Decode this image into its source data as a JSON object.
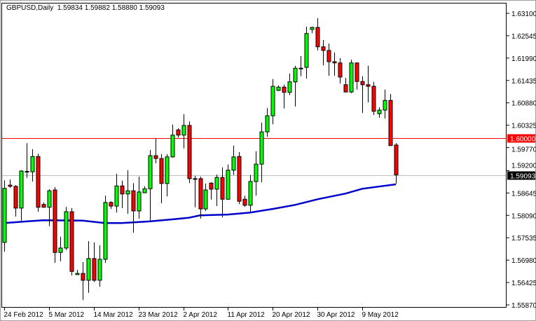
{
  "header": {
    "symbol": "GBPUSD,Daily",
    "open": "1.59834",
    "high": "1.59882",
    "low": "1.58880",
    "close": "1.59093"
  },
  "colors": {
    "bull": "#00ff00",
    "bear": "#ff0000",
    "outline": "#000000",
    "ma": "#0000cc",
    "level_line": "#ff0000",
    "bid_line": "#c0c0c0",
    "bid_label_bg": "#000000"
  },
  "chart_data": {
    "type": "candlestick",
    "title": "GBPUSD,Daily",
    "ylim": [
      1.5587,
      1.631
    ],
    "y_ticks": [
      "1.63100",
      "1.62545",
      "1.61990",
      "1.61435",
      "1.60880",
      "1.60325",
      "1.59770",
      "1.59200",
      "1.58645",
      "1.58090",
      "1.57535",
      "1.56980",
      "1.56425",
      "1.55870"
    ],
    "x_ticks": [
      {
        "index": 0,
        "label": "24 Feb 2012"
      },
      {
        "index": 8,
        "label": "5 Mar 2012"
      },
      {
        "index": 16,
        "label": "14 Mar 2012"
      },
      {
        "index": 24,
        "label": "23 Mar 2012"
      },
      {
        "index": 32,
        "label": "2 Apr 2012"
      },
      {
        "index": 40,
        "label": "11 Apr 2012"
      },
      {
        "index": 48,
        "label": "20 Apr 2012"
      },
      {
        "index": 56,
        "label": "30 Apr 2012"
      },
      {
        "index": 64,
        "label": "9 May 2012"
      }
    ],
    "level_line": {
      "value": 1.6,
      "label": "1.60000"
    },
    "bid_line": {
      "value": 1.59093,
      "label": "1.59093"
    },
    "ohlc": [
      [
        1.5742,
        1.5896,
        1.5719,
        1.5876
      ],
      [
        1.5884,
        1.5898,
        1.5877,
        1.5881
      ],
      [
        1.5881,
        1.5884,
        1.5806,
        1.5827
      ],
      [
        1.5827,
        1.5921,
        1.5796,
        1.5919
      ],
      [
        1.5918,
        1.5988,
        1.5902,
        1.5917
      ],
      [
        1.5917,
        1.5973,
        1.5893,
        1.5955
      ],
      [
        1.5955,
        1.5962,
        1.5818,
        1.5829
      ],
      [
        1.5836,
        1.5841,
        1.5829,
        1.5829
      ],
      [
        1.5829,
        1.5874,
        1.5782,
        1.587
      ],
      [
        1.5872,
        1.5879,
        1.5691,
        1.5717
      ],
      [
        1.5717,
        1.5756,
        1.5695,
        1.5728
      ],
      [
        1.5728,
        1.583,
        1.5723,
        1.5818
      ],
      [
        1.5818,
        1.5827,
        1.566,
        1.567
      ],
      [
        1.5662,
        1.5674,
        1.5662,
        1.5665
      ],
      [
        1.5665,
        1.5693,
        1.5599,
        1.5648
      ],
      [
        1.5648,
        1.5745,
        1.5617,
        1.5702
      ],
      [
        1.5702,
        1.5742,
        1.5644,
        1.5648
      ],
      [
        1.5648,
        1.5735,
        1.5632,
        1.57
      ],
      [
        1.57,
        1.5858,
        1.5691,
        1.5841
      ],
      [
        1.5841,
        1.5844,
        1.5825,
        1.5832
      ],
      [
        1.5832,
        1.5912,
        1.5816,
        1.5882
      ],
      [
        1.5882,
        1.5895,
        1.5827,
        1.5862
      ],
      [
        1.5862,
        1.5921,
        1.5813,
        1.587
      ],
      [
        1.587,
        1.5889,
        1.5766,
        1.582
      ],
      [
        1.582,
        1.5905,
        1.5801,
        1.5867
      ],
      [
        1.5865,
        1.5881,
        1.5865,
        1.5875
      ],
      [
        1.5875,
        1.5971,
        1.5796,
        1.5957
      ],
      [
        1.5957,
        1.5999,
        1.5938,
        1.595
      ],
      [
        1.595,
        1.5961,
        1.5839,
        1.5888
      ],
      [
        1.5888,
        1.5961,
        1.5856,
        1.5954
      ],
      [
        1.5954,
        1.6034,
        1.5952,
        1.6008
      ],
      [
        1.6021,
        1.6025,
        1.6002,
        1.6008
      ],
      [
        1.6008,
        1.606,
        1.5975,
        1.6032
      ],
      [
        1.6032,
        1.6042,
        1.5889,
        1.59
      ],
      [
        1.59,
        1.5907,
        1.5829,
        1.5899
      ],
      [
        1.59,
        1.5905,
        1.5801,
        1.5825
      ],
      [
        1.5825,
        1.5888,
        1.582,
        1.5872
      ],
      [
        1.5889,
        1.5891,
        1.5848,
        1.5874
      ],
      [
        1.5874,
        1.591,
        1.5832,
        1.5903
      ],
      [
        1.5903,
        1.5928,
        1.5804,
        1.5849
      ],
      [
        1.5849,
        1.5935,
        1.5848,
        1.5921
      ],
      [
        1.5921,
        1.5982,
        1.5909,
        1.5954
      ],
      [
        1.5955,
        1.5966,
        1.5837,
        1.5844
      ],
      [
        1.5849,
        1.5858,
        1.583,
        1.5834
      ],
      [
        1.5834,
        1.5909,
        1.5816,
        1.5893
      ],
      [
        1.5893,
        1.5968,
        1.5858,
        1.5936
      ],
      [
        1.5936,
        1.6039,
        1.5891,
        1.6016
      ],
      [
        1.6016,
        1.6075,
        1.6004,
        1.6056
      ],
      [
        1.6056,
        1.6147,
        1.6035,
        1.6129
      ],
      [
        1.6119,
        1.6131,
        1.6117,
        1.6127
      ],
      [
        1.6127,
        1.6133,
        1.6074,
        1.6114
      ],
      [
        1.6114,
        1.6161,
        1.6107,
        1.614
      ],
      [
        1.614,
        1.618,
        1.6079,
        1.6174
      ],
      [
        1.6174,
        1.6204,
        1.6154,
        1.6173
      ],
      [
        1.6176,
        1.6277,
        1.6148,
        1.626
      ],
      [
        1.627,
        1.6277,
        1.6261,
        1.6275
      ],
      [
        1.6275,
        1.6298,
        1.6218,
        1.6227
      ],
      [
        1.6227,
        1.6244,
        1.6181,
        1.6218
      ],
      [
        1.6218,
        1.6235,
        1.6155,
        1.619
      ],
      [
        1.619,
        1.6213,
        1.6155,
        1.6187
      ],
      [
        1.6187,
        1.6199,
        1.6136,
        1.6152
      ],
      [
        1.6133,
        1.615,
        1.6114,
        1.6115
      ],
      [
        1.6115,
        1.6195,
        1.6112,
        1.6187
      ],
      [
        1.6187,
        1.6188,
        1.6121,
        1.6141
      ],
      [
        1.6141,
        1.6154,
        1.6063,
        1.6133
      ],
      [
        1.6133,
        1.618,
        1.6089,
        1.6129
      ],
      [
        1.6129,
        1.614,
        1.6058,
        1.6067
      ],
      [
        1.6061,
        1.6077,
        1.6051,
        1.607
      ],
      [
        1.607,
        1.6121,
        1.6049,
        1.6094
      ],
      [
        1.6094,
        1.611,
        1.5981,
        1.5982
      ],
      [
        1.59834,
        1.59882,
        1.5888,
        1.59093
      ]
    ],
    "moving_average": [
      [
        0,
        1.579
      ],
      [
        4,
        1.5794
      ],
      [
        7,
        1.5797
      ],
      [
        14,
        1.5796
      ],
      [
        18,
        1.579
      ],
      [
        21,
        1.579
      ],
      [
        26,
        1.5794
      ],
      [
        30,
        1.5799
      ],
      [
        33,
        1.5803
      ],
      [
        35,
        1.5809
      ],
      [
        40,
        1.5811
      ],
      [
        44,
        1.5816
      ],
      [
        48,
        1.5825
      ],
      [
        52,
        1.5835
      ],
      [
        56,
        1.5849
      ],
      [
        61,
        1.5863
      ],
      [
        64,
        1.5875
      ],
      [
        70,
        1.5886
      ]
    ]
  }
}
